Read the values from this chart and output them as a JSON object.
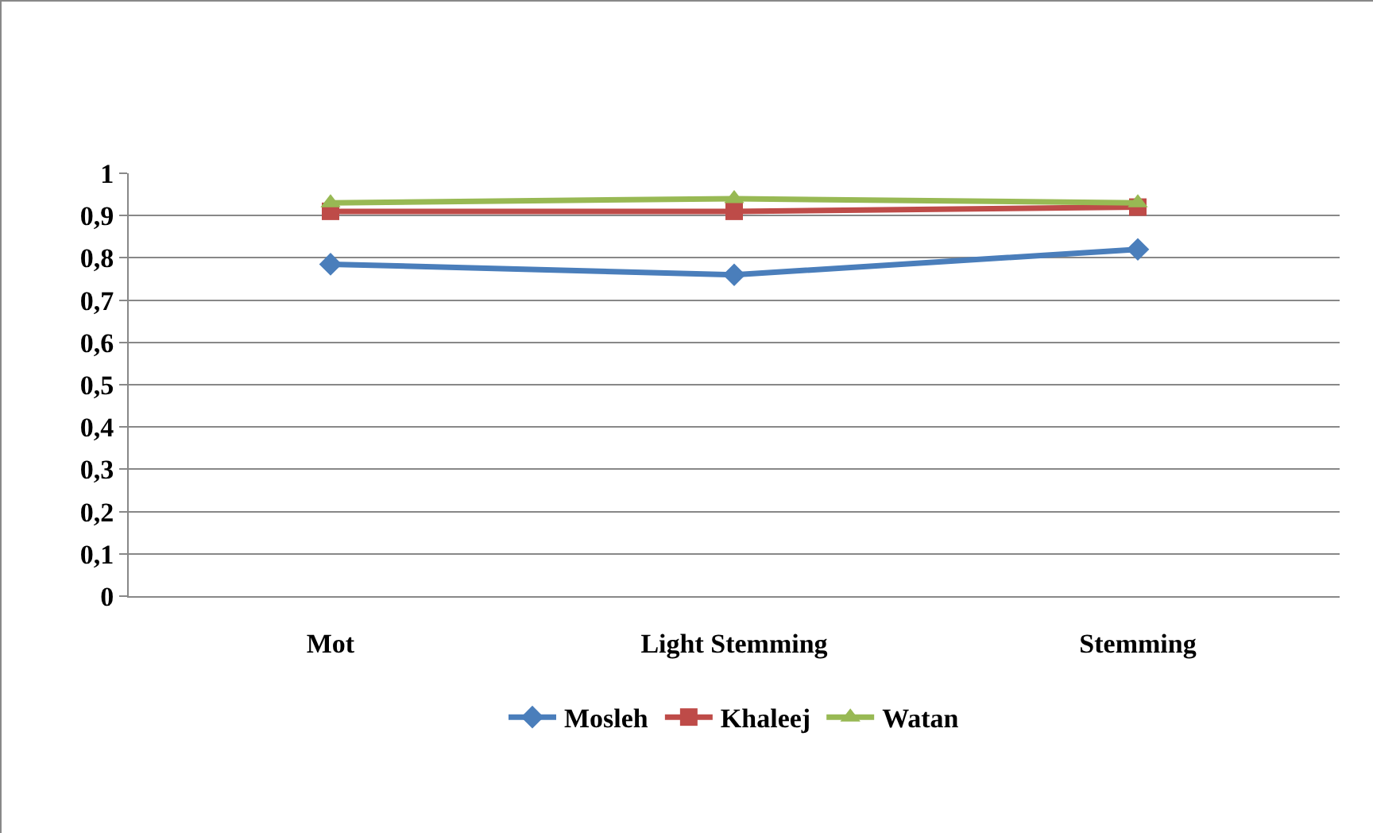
{
  "chart_data": {
    "type": "line",
    "categories": [
      "Mot",
      "Light Stemming",
      "Stemming"
    ],
    "series": [
      {
        "name": "Mosleh",
        "color": "#4a7ebb",
        "marker": "diamond",
        "values": [
          0.785,
          0.76,
          0.82
        ]
      },
      {
        "name": "Khaleej",
        "color": "#be4b48",
        "marker": "square",
        "values": [
          0.91,
          0.91,
          0.92
        ]
      },
      {
        "name": "Watan",
        "color": "#98b954",
        "marker": "triangle",
        "values": [
          0.93,
          0.94,
          0.93
        ]
      }
    ],
    "ylim": [
      0,
      1
    ],
    "yticks": [
      0,
      {
        "value": 0.1,
        "label": "0,1"
      },
      {
        "value": 0.2,
        "label": "0,2"
      },
      {
        "value": 0.3,
        "label": "0,3"
      },
      {
        "value": 0.4,
        "label": "0,4"
      },
      {
        "value": 0.5,
        "label": "0,5"
      },
      {
        "value": 0.6,
        "label": "0,6"
      },
      {
        "value": 0.7,
        "label": "0,7"
      },
      {
        "value": 0.8,
        "label": "0,8"
      },
      {
        "value": 0.9,
        "label": "0,9"
      },
      1
    ],
    "grid": "y",
    "legend": "bottom",
    "line_style": "solid"
  }
}
